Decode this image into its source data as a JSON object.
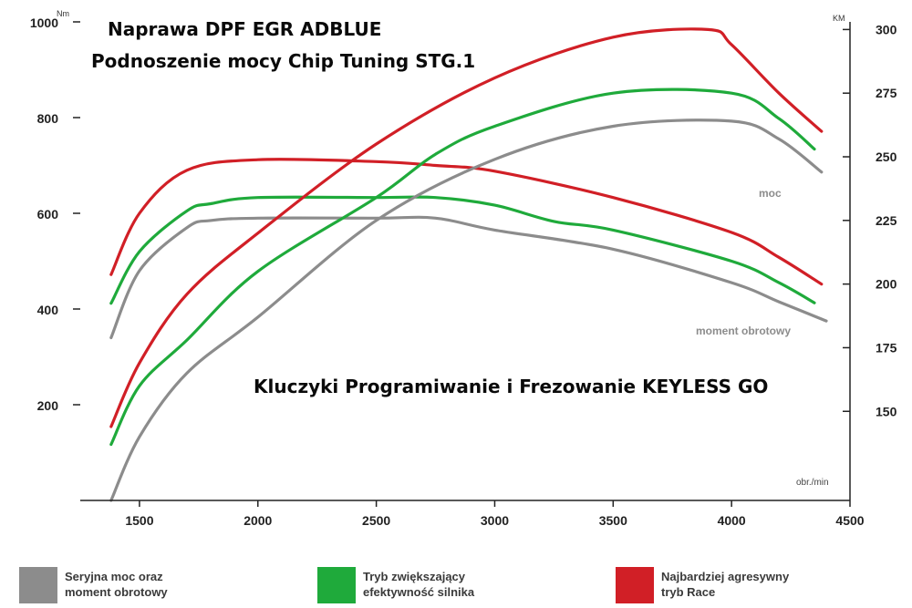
{
  "ads": {
    "line1": "Naprawa DPF EGR ADBLUE",
    "line2": "Podnoszenie mocy Chip Tuning STG.1",
    "line3": "Kluczyki Programiwanie i Frezowanie KEYLESS GO"
  },
  "legend": [
    {
      "color": "#8c8c8c",
      "line1": "Seryjna moc oraz",
      "line2": "moment obrotowy"
    },
    {
      "color": "#1faa3b",
      "line1": "Tryb zwiększający",
      "line2": "efektywność silnika"
    },
    {
      "color": "#d11f26",
      "line1": "Najbardziej agresywny",
      "line2": "tryb Race"
    }
  ],
  "chart_data": {
    "type": "line",
    "xlabel": "obr./min",
    "ylabel_left": "Nm",
    "ylabel_right": "KM",
    "xlim": [
      1250,
      4500
    ],
    "x_ticks": [
      "1500",
      "2000",
      "2500",
      "3000",
      "3500",
      "4000",
      "4500"
    ],
    "left_ylim": [
      0,
      1000
    ],
    "left_ticks": [
      "200",
      "400",
      "600",
      "800",
      "1000"
    ],
    "right_ylim": [
      115,
      303
    ],
    "right_ticks": [
      "150",
      "175",
      "200",
      "225",
      "250",
      "275",
      "300"
    ],
    "annotations": {
      "power": "moc",
      "torque": "moment obrotowy"
    },
    "series": [
      {
        "group": "Seryjna moc oraz moment obrotowy",
        "kind": "torque",
        "axis": "left",
        "color": "#8c8c8c",
        "points": [
          [
            1380,
            340
          ],
          [
            1500,
            480
          ],
          [
            1700,
            570
          ],
          [
            1800,
            585
          ],
          [
            2000,
            590
          ],
          [
            2500,
            590
          ],
          [
            2750,
            590
          ],
          [
            3000,
            565
          ],
          [
            3500,
            525
          ],
          [
            4000,
            455
          ],
          [
            4200,
            415
          ],
          [
            4400,
            375
          ]
        ]
      },
      {
        "group": "Tryb zwiększający efektywność silnika",
        "kind": "torque",
        "axis": "left",
        "color": "#1faa3b",
        "points": [
          [
            1380,
            412
          ],
          [
            1500,
            520
          ],
          [
            1700,
            605
          ],
          [
            1800,
            620
          ],
          [
            2000,
            633
          ],
          [
            2500,
            633
          ],
          [
            2750,
            633
          ],
          [
            3000,
            617
          ],
          [
            3250,
            583
          ],
          [
            3500,
            565
          ],
          [
            4000,
            500
          ],
          [
            4200,
            455
          ],
          [
            4350,
            413
          ]
        ]
      },
      {
        "group": "Najbardziej agresywny tryb Race",
        "kind": "torque",
        "axis": "left",
        "color": "#d11f26",
        "points": [
          [
            1380,
            472
          ],
          [
            1500,
            600
          ],
          [
            1700,
            690
          ],
          [
            2000,
            712
          ],
          [
            2500,
            708
          ],
          [
            2750,
            700
          ],
          [
            3000,
            688
          ],
          [
            3500,
            633
          ],
          [
            4000,
            560
          ],
          [
            4200,
            508
          ],
          [
            4380,
            452
          ]
        ]
      },
      {
        "group": "Seryjna moc oraz moment obrotowy",
        "kind": "power",
        "axis": "right",
        "color": "#8c8c8c",
        "points": [
          [
            1380,
            115
          ],
          [
            1500,
            140
          ],
          [
            1700,
            165
          ],
          [
            2000,
            187
          ],
          [
            2500,
            225
          ],
          [
            3000,
            249
          ],
          [
            3500,
            262
          ],
          [
            4000,
            264
          ],
          [
            4200,
            257
          ],
          [
            4380,
            244
          ]
        ]
      },
      {
        "group": "Tryb zwiększający efektywność silnika",
        "kind": "power",
        "axis": "right",
        "color": "#1faa3b",
        "points": [
          [
            1380,
            137
          ],
          [
            1500,
            160
          ],
          [
            1700,
            178
          ],
          [
            2000,
            205
          ],
          [
            2500,
            234
          ],
          [
            2750,
            251
          ],
          [
            3000,
            262
          ],
          [
            3500,
            275
          ],
          [
            4000,
            275
          ],
          [
            4200,
            265
          ],
          [
            4350,
            253
          ]
        ]
      },
      {
        "group": "Najbardziej agresywny tryb Race",
        "kind": "power",
        "axis": "right",
        "color": "#d11f26",
        "points": [
          [
            1380,
            144
          ],
          [
            1500,
            169
          ],
          [
            1700,
            196
          ],
          [
            2000,
            220
          ],
          [
            2500,
            255
          ],
          [
            3000,
            281
          ],
          [
            3500,
            297
          ],
          [
            3900,
            300
          ],
          [
            4000,
            294
          ],
          [
            4200,
            275
          ],
          [
            4380,
            260
          ]
        ]
      }
    ]
  }
}
